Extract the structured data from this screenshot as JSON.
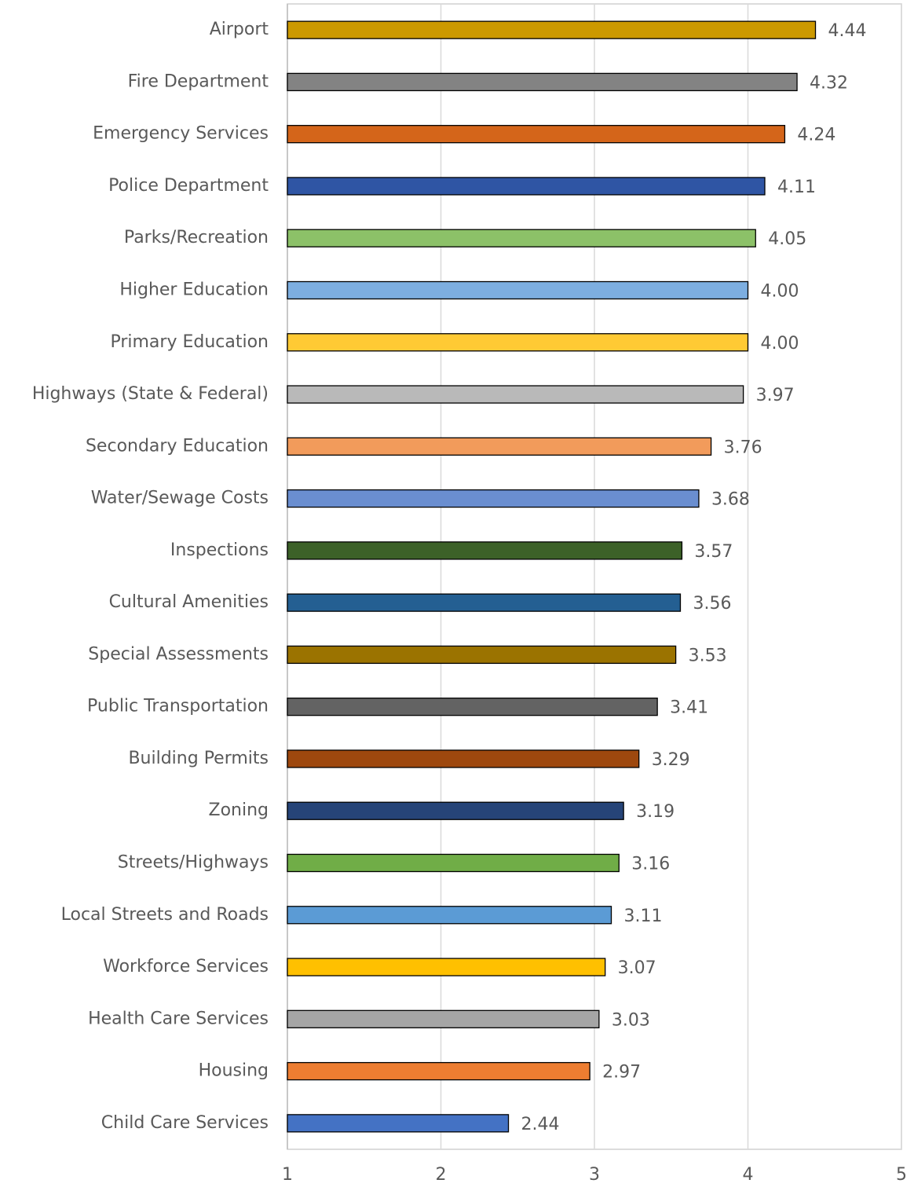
{
  "chart_data": {
    "type": "barh",
    "categories": [
      "Airport",
      "Fire Department",
      "Emergency Services",
      "Police Department",
      "Parks/Recreation",
      "Higher Education",
      "Primary Education",
      "Highways (State & Federal)",
      "Secondary Education",
      "Water/Sewage Costs",
      "Inspections",
      "Cultural Amenities",
      "Special Assessments",
      "Public Transportation",
      "Building Permits",
      "Zoning",
      "Streets/Highways",
      "Local Streets and Roads",
      "Workforce Services",
      "Health Care Services",
      "Housing",
      "Child Care Services"
    ],
    "values": [
      4.44,
      4.32,
      4.24,
      4.11,
      4.05,
      4.0,
      4.0,
      3.97,
      3.76,
      3.68,
      3.57,
      3.56,
      3.53,
      3.41,
      3.29,
      3.19,
      3.16,
      3.11,
      3.07,
      3.03,
      2.97,
      2.44
    ],
    "value_labels": [
      "4.44",
      "4.32",
      "4.24",
      "4.11",
      "4.05",
      "4.00",
      "4.00",
      "3.97",
      "3.76",
      "3.68",
      "3.57",
      "3.56",
      "3.53",
      "3.41",
      "3.29",
      "3.19",
      "3.16",
      "3.11",
      "3.07",
      "3.03",
      "2.97",
      "2.44"
    ],
    "colors": [
      "#cc9900",
      "#838383",
      "#d4651a",
      "#2f55a4",
      "#8cc168",
      "#7daee0",
      "#ffca34",
      "#b9b9b9",
      "#f29b5b",
      "#6a8ed0",
      "#3c6128",
      "#245f92",
      "#9b7300",
      "#636363",
      "#9e480e",
      "#264478",
      "#70ad47",
      "#5b9bd5",
      "#ffc000",
      "#a5a5a5",
      "#ed7d31",
      "#4472c4"
    ],
    "xlim": [
      1,
      5
    ],
    "xticks": [
      1,
      2,
      3,
      4,
      5
    ],
    "grid": true
  }
}
